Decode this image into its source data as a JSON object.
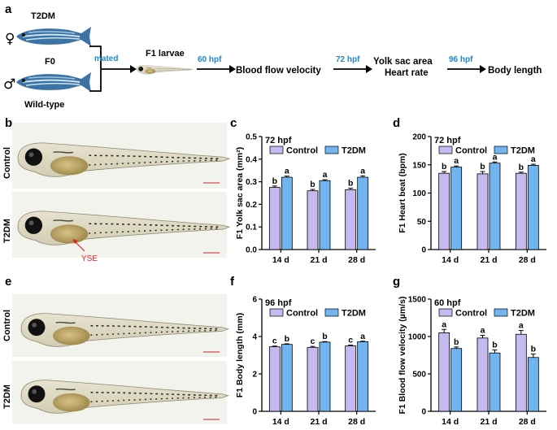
{
  "panel_a": {
    "label": "a",
    "female_label": "T2DM",
    "generation_label": "F0",
    "male_label": "Wild-type",
    "female_symbol": "♀",
    "male_symbol": "♂",
    "mated_label": "mated",
    "f1_label": "F1 larvae",
    "arrow1_label": "60 hpf",
    "step1": "Blood flow velocity",
    "arrow2_label": "72 hpf",
    "step2_line1": "Yolk sac area",
    "step2_line2": "Heart rate",
    "arrow3_label": "96 hpf",
    "step3": "Body length",
    "arrow_label_color": "#1f86d1"
  },
  "panel_b": {
    "label": "b",
    "row1_label": "Control",
    "row2_label": "T2DM",
    "annotation": "YSE",
    "annotation_color": "#e0242a"
  },
  "panel_e": {
    "label": "e",
    "row1_label": "Control",
    "row2_label": "T2DM"
  },
  "colors": {
    "control": "#c5b9ef",
    "t2dm": "#71b4ef"
  },
  "chart_data": [
    {
      "panel": "c",
      "type": "bar",
      "title": "72 hpf",
      "ylabel": "F1 Yolk sac area (mm²)",
      "xlabel": "",
      "categories": [
        "14 d",
        "21 d",
        "28 d"
      ],
      "ylim": [
        0.0,
        0.5
      ],
      "yticks": [
        "0.0",
        "0.1",
        "0.2",
        "0.3",
        "0.4",
        "0.5"
      ],
      "legend": [
        "Control",
        "T2DM"
      ],
      "series": [
        {
          "name": "Control",
          "values": [
            0.275,
            0.26,
            0.265
          ],
          "errors": [
            0.006,
            0.006,
            0.006
          ],
          "letters": [
            "b",
            "b",
            "b"
          ]
        },
        {
          "name": "T2DM",
          "values": [
            0.32,
            0.305,
            0.32
          ],
          "errors": [
            0.005,
            0.004,
            0.006
          ],
          "letters": [
            "a",
            "a",
            "a"
          ]
        }
      ]
    },
    {
      "panel": "d",
      "type": "bar",
      "title": "72 hpf",
      "ylabel": "F1 Heart beat (bpm)",
      "xlabel": "",
      "categories": [
        "14 d",
        "21 d",
        "28 d"
      ],
      "ylim": [
        0,
        200
      ],
      "yticks": [
        "0",
        "50",
        "100",
        "150",
        "200"
      ],
      "legend": [
        "Control",
        "T2DM"
      ],
      "series": [
        {
          "name": "Control",
          "values": [
            135,
            134,
            135
          ],
          "errors": [
            3,
            4,
            2
          ],
          "letters": [
            "b",
            "b",
            "b"
          ]
        },
        {
          "name": "T2DM",
          "values": [
            146,
            153,
            149
          ],
          "errors": [
            2,
            2,
            2
          ],
          "letters": [
            "a",
            "a",
            "a"
          ]
        }
      ]
    },
    {
      "panel": "f",
      "type": "bar",
      "title": "96 hpf",
      "ylabel": "F1 Body length (mm)",
      "xlabel": "",
      "categories": [
        "14 d",
        "21 d",
        "28 d"
      ],
      "ylim": [
        0,
        6
      ],
      "yticks": [
        "0",
        "2",
        "4",
        "6"
      ],
      "legend": [
        "Control",
        "T2DM"
      ],
      "series": [
        {
          "name": "Control",
          "values": [
            3.45,
            3.42,
            3.5
          ],
          "errors": [
            0.04,
            0.05,
            0.04
          ],
          "letters": [
            "c",
            "c",
            "c"
          ]
        },
        {
          "name": "T2DM",
          "values": [
            3.58,
            3.7,
            3.72
          ],
          "errors": [
            0.03,
            0.03,
            0.03
          ],
          "letters": [
            "b",
            "b",
            "a"
          ]
        }
      ]
    },
    {
      "panel": "g",
      "type": "bar",
      "title": "60 hpf",
      "ylabel": "F1 Blood flow velocity (µm/s)",
      "xlabel": "",
      "categories": [
        "14 d",
        "21 d",
        "28 d"
      ],
      "ylim": [
        0,
        1500
      ],
      "yticks": [
        "0",
        "500",
        "1000",
        "1500"
      ],
      "legend": [
        "Control",
        "T2DM"
      ],
      "series": [
        {
          "name": "Control",
          "values": [
            1050,
            980,
            1030
          ],
          "errors": [
            45,
            35,
            50
          ],
          "letters": [
            "a",
            "a",
            "a"
          ]
        },
        {
          "name": "T2DM",
          "values": [
            840,
            780,
            720
          ],
          "errors": [
            20,
            40,
            45
          ],
          "letters": [
            "b",
            "b",
            "b"
          ]
        }
      ]
    }
  ]
}
